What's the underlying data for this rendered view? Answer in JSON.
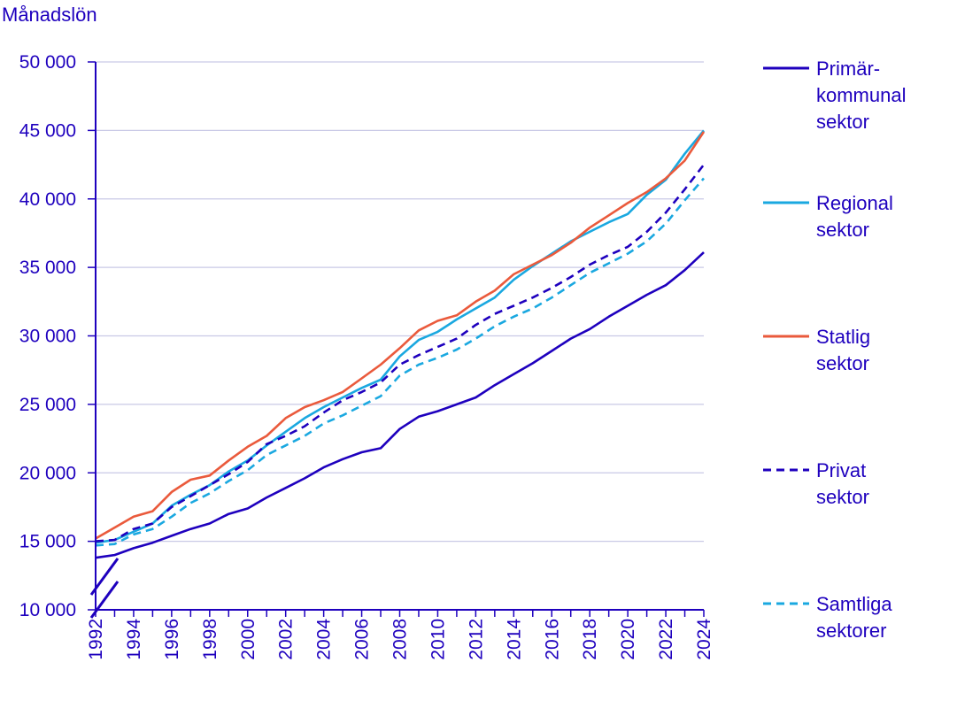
{
  "chart_data": {
    "type": "line",
    "ylabel": "Månadslön",
    "xlabel": "",
    "ylim": [
      10000,
      50000
    ],
    "yticks": [
      10000,
      15000,
      20000,
      25000,
      30000,
      35000,
      40000,
      45000,
      50000
    ],
    "ytick_labels": [
      "10 000",
      "15 000",
      "20 000",
      "25 000",
      "30 000",
      "35 000",
      "40 000",
      "45 000",
      "50 000"
    ],
    "xlim": [
      1992,
      2024
    ],
    "xticks": [
      1992,
      1994,
      1996,
      1998,
      2000,
      2002,
      2004,
      2006,
      2008,
      2010,
      2012,
      2014,
      2016,
      2018,
      2020,
      2022,
      2024
    ],
    "xtick_labels": [
      "1992",
      "1994",
      "1996",
      "1998",
      "2000",
      "2002",
      "2004",
      "2006",
      "2008",
      "2010",
      "2012",
      "2014",
      "2016",
      "2018",
      "2020",
      "2022",
      "2024"
    ],
    "grid": "horizontal",
    "legend_position": "right",
    "axis_break": true,
    "x": [
      1992,
      1993,
      1994,
      1995,
      1996,
      1997,
      1998,
      1999,
      2000,
      2001,
      2002,
      2003,
      2004,
      2005,
      2006,
      2007,
      2008,
      2009,
      2010,
      2011,
      2012,
      2013,
      2014,
      2015,
      2016,
      2017,
      2018,
      2019,
      2020,
      2021,
      2022,
      2023,
      2024
    ],
    "series": [
      {
        "name": "Primärkommunal sektor",
        "legend_lines": [
          "Primär-",
          "kommunal",
          "sektor"
        ],
        "color": "#1e00be",
        "dash": "solid",
        "values": [
          13800,
          14000,
          14500,
          14900,
          15400,
          15900,
          16300,
          17000,
          17400,
          18200,
          18900,
          19600,
          20400,
          21000,
          21500,
          21800,
          23200,
          24100,
          24500,
          25000,
          25500,
          26400,
          27200,
          28000,
          28900,
          29800,
          30500,
          31400,
          32200,
          33000,
          33700,
          34800,
          36100
        ]
      },
      {
        "name": "Regional sektor",
        "legend_lines": [
          "Regional",
          "sektor"
        ],
        "color": "#1aa8e0",
        "dash": "solid",
        "values": [
          14900,
          15100,
          15700,
          16300,
          17600,
          18400,
          19100,
          20100,
          20900,
          22000,
          23000,
          24000,
          24800,
          25500,
          26200,
          26800,
          28500,
          29700,
          30300,
          31200,
          32000,
          32800,
          34100,
          35100,
          36000,
          36900,
          37600,
          38300,
          38900,
          40300,
          41400,
          43300,
          45000
        ]
      },
      {
        "name": "Statlig sektor",
        "legend_lines": [
          "Statlig",
          "sektor"
        ],
        "color": "#ea5a3c",
        "dash": "solid",
        "values": [
          15200,
          16000,
          16800,
          17200,
          18600,
          19500,
          19800,
          20900,
          21900,
          22700,
          24000,
          24800,
          25300,
          25900,
          26900,
          27900,
          29100,
          30400,
          31100,
          31500,
          32500,
          33300,
          34500,
          35200,
          35900,
          36800,
          37900,
          38800,
          39700,
          40500,
          41500,
          42800,
          44900
        ]
      },
      {
        "name": "Privat sektor",
        "legend_lines": [
          "Privat",
          "sektor"
        ],
        "color": "#1e00be",
        "dash": "dashed",
        "values": [
          15000,
          15100,
          15900,
          16300,
          17500,
          18300,
          19100,
          19900,
          20800,
          22100,
          22700,
          23400,
          24400,
          25300,
          25900,
          26600,
          27900,
          28600,
          29200,
          29800,
          30800,
          31600,
          32200,
          32800,
          33500,
          34300,
          35200,
          35900,
          36500,
          37600,
          39000,
          40700,
          42500
        ]
      },
      {
        "name": "Samtliga sektorer",
        "legend_lines": [
          "Samtliga",
          "sektorer"
        ],
        "color": "#1aa8e0",
        "dash": "dashed",
        "values": [
          14700,
          14800,
          15500,
          15900,
          16800,
          17800,
          18500,
          19400,
          20200,
          21300,
          22000,
          22700,
          23600,
          24200,
          24900,
          25600,
          27100,
          27900,
          28400,
          29000,
          29800,
          30700,
          31400,
          32000,
          32800,
          33700,
          34600,
          35300,
          36000,
          36900,
          38200,
          39900,
          41500
        ]
      }
    ]
  }
}
